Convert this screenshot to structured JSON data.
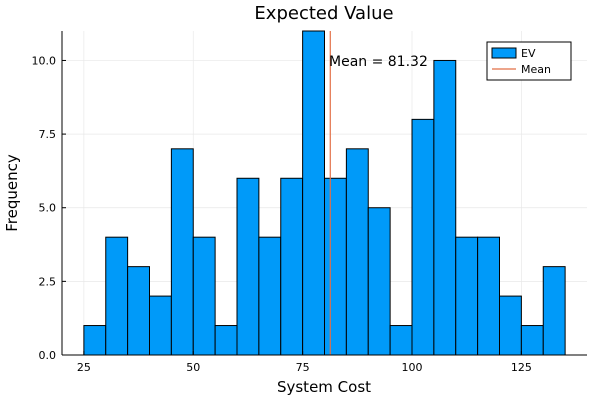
{
  "chart_data": {
    "type": "bar",
    "title": "Expected Value",
    "xlabel": "System Cost",
    "ylabel": "Frequency",
    "bin_width": 5,
    "bin_start": 25,
    "counts": [
      1,
      4,
      3,
      2,
      7,
      4,
      1,
      6,
      4,
      6,
      11,
      6,
      7,
      5,
      1,
      8,
      10,
      4,
      4,
      2,
      1,
      3
    ],
    "xlim": [
      20,
      140
    ],
    "ylim": [
      0,
      11
    ],
    "xticks": [
      25,
      50,
      75,
      100,
      125
    ],
    "yticks": [
      0,
      2.5,
      5,
      7.5,
      10
    ],
    "ytick_labels": [
      "0.0",
      "2.5",
      "5.0",
      "7.5",
      "10.0"
    ],
    "mean": 81.32,
    "mean_annotation": "Mean = 81.32",
    "grid": true,
    "legend_position": "top-right",
    "legend": [
      {
        "label": "EV",
        "kind": "bar"
      },
      {
        "label": "Mean",
        "kind": "line"
      }
    ],
    "colors": {
      "bar_fill": "#009af9",
      "bar_stroke": "#000000",
      "mean_line": "#e26f46",
      "grid": "#e8e8e8",
      "axis": "#000000"
    }
  }
}
